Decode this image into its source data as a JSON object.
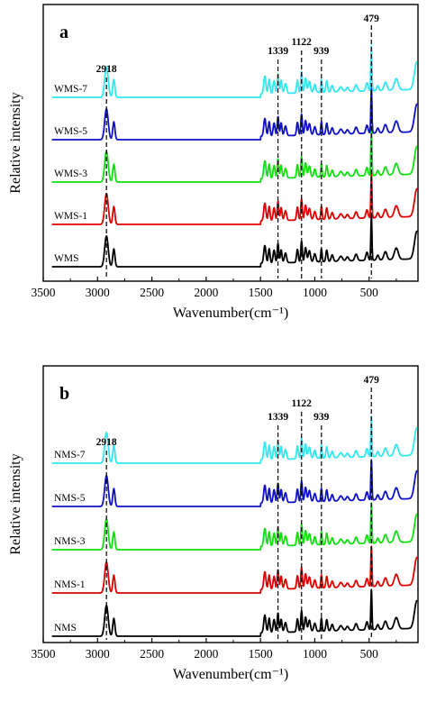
{
  "chart_data": [
    {
      "type": "line",
      "panel": "a",
      "xlabel": "Wavenumber(cm⁻¹)",
      "ylabel": "Relative intensity",
      "xlim": [
        3500,
        50
      ],
      "x_reversed": true,
      "x_ticks": [
        3500,
        3000,
        2500,
        2000,
        1500,
        1000,
        500
      ],
      "y_ticks_shown": false,
      "grid": false,
      "legend": "inline labels left of each trace",
      "peak_markers": [
        {
          "label": "2918",
          "x": 2918
        },
        {
          "label": "1339",
          "x": 1339
        },
        {
          "label": "1122",
          "x": 1122
        },
        {
          "label": "939",
          "x": 939
        },
        {
          "label": "479",
          "x": 479
        }
      ],
      "series": [
        {
          "name": "WMS",
          "color": "#000000",
          "offset": 0
        },
        {
          "name": "WMS-1",
          "color": "#e00000",
          "offset": 1
        },
        {
          "name": "WMS-3",
          "color": "#10e010",
          "offset": 2
        },
        {
          "name": "WMS-5",
          "color": "#1010c8",
          "offset": 3
        },
        {
          "name": "WMS-7",
          "color": "#30e8f0",
          "offset": 4
        }
      ]
    },
    {
      "type": "line",
      "panel": "b",
      "xlabel": "Wavenumber(cm⁻¹)",
      "ylabel": "Relative intensity",
      "xlim": [
        3500,
        50
      ],
      "x_reversed": true,
      "x_ticks": [
        3500,
        3000,
        2500,
        2000,
        1500,
        1000,
        500
      ],
      "y_ticks_shown": false,
      "grid": false,
      "legend": "inline labels left of each trace",
      "peak_markers": [
        {
          "label": "2918",
          "x": 2918
        },
        {
          "label": "1339",
          "x": 1339
        },
        {
          "label": "1122",
          "x": 1122
        },
        {
          "label": "939",
          "x": 939
        },
        {
          "label": "479",
          "x": 479
        }
      ],
      "series": [
        {
          "name": "NMS",
          "color": "#000000",
          "offset": 0
        },
        {
          "name": "NMS-1",
          "color": "#e00000",
          "offset": 1
        },
        {
          "name": "NMS-3",
          "color": "#10e010",
          "offset": 2
        },
        {
          "name": "NMS-5",
          "color": "#1010c8",
          "offset": 3
        },
        {
          "name": "NMS-7",
          "color": "#30e8f0",
          "offset": 4
        }
      ]
    }
  ]
}
